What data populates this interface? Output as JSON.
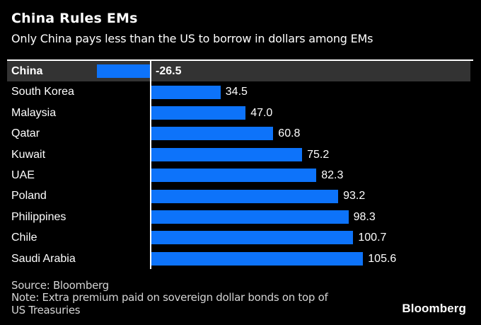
{
  "header": {
    "title": "China Rules EMs",
    "subtitle": "Only China pays less than the US to borrow in dollars among EMs"
  },
  "chart_data": {
    "type": "bar",
    "orientation": "horizontal",
    "title": "China Rules EMs",
    "subtitle": "Only China pays less than the US to borrow in dollars among EMs",
    "categories": [
      "China",
      "South Korea",
      "Malaysia",
      "Qatar",
      "Kuwait",
      "UAE",
      "Poland",
      "Philippines",
      "Chile",
      "Saudi Arabia"
    ],
    "values": [
      -26.5,
      34.5,
      47.0,
      60.8,
      75.2,
      82.3,
      93.2,
      98.3,
      100.7,
      105.6
    ],
    "value_labels": [
      "-26.5",
      "34.5",
      "47.0",
      "60.8",
      "75.2",
      "82.3",
      "93.2",
      "98.3",
      "100.7",
      "105.6"
    ],
    "highlighted_category": "China",
    "baseline_value": 0,
    "grid": false,
    "legend": false,
    "bar_color": "#0d73fa",
    "highlight_row_color": "#333333",
    "axis_color": "#ffffff"
  },
  "footer": {
    "source": "Source: Bloomberg",
    "note_line1": "Note: Extra premium paid on sovereign dollar bonds on top of",
    "note_line2": "US Treasuries",
    "logo": "Bloomberg"
  },
  "colors": {
    "background": "#000000",
    "text": "#ffffff",
    "footer_text": "#d4d4d4"
  }
}
